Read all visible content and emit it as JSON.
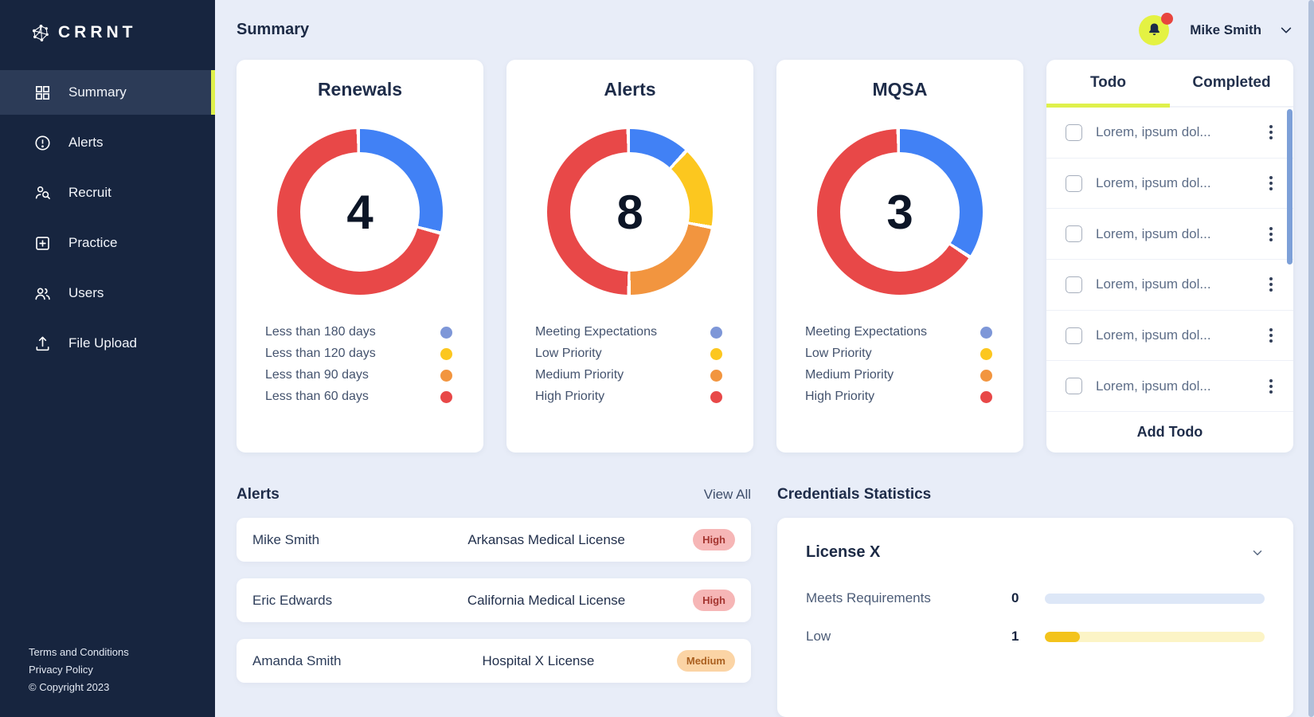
{
  "app": {
    "brand": "CRRNT"
  },
  "header": {
    "title": "Summary"
  },
  "user": {
    "name": "Mike Smith"
  },
  "sidebar": {
    "items": [
      {
        "label": "Summary",
        "icon": "grid-icon",
        "active": true
      },
      {
        "label": "Alerts",
        "icon": "alert-circle-icon",
        "active": false
      },
      {
        "label": "Recruit",
        "icon": "person-search-icon",
        "active": false
      },
      {
        "label": "Practice",
        "icon": "square-plus-icon",
        "active": false
      },
      {
        "label": "Users",
        "icon": "users-icon",
        "active": false
      },
      {
        "label": "File Upload",
        "icon": "upload-icon",
        "active": false
      }
    ],
    "footer": {
      "terms": "Terms and Conditions",
      "privacy": "Privacy Policy",
      "copyright": "© Copyright 2023"
    }
  },
  "chart_data": [
    {
      "type": "pie",
      "title": "Renewals",
      "center_value": "4",
      "segments": [
        {
          "label": "Less than 180 days",
          "color": "#4181f5",
          "deg": 106
        },
        {
          "label": "Less than 60 days",
          "color": "#e84848",
          "deg": 254
        }
      ],
      "legend": [
        {
          "label": "Less than 180 days",
          "color": "#7e97d8"
        },
        {
          "label": "Less than 120 days",
          "color": "#fcc71f"
        },
        {
          "label": "Less than 90 days",
          "color": "#f2953f"
        },
        {
          "label": "Less than 60 days",
          "color": "#e84848"
        }
      ]
    },
    {
      "type": "pie",
      "title": "Alerts",
      "center_value": "8",
      "segments": [
        {
          "label": "Meeting Expectations",
          "color": "#4181f5",
          "deg": 44
        },
        {
          "label": "Low Priority",
          "color": "#fcc71f",
          "deg": 58
        },
        {
          "label": "Medium Priority",
          "color": "#f2953f",
          "deg": 80
        },
        {
          "label": "High Priority",
          "color": "#e84848",
          "deg": 178
        }
      ],
      "legend": [
        {
          "label": "Meeting Expectations",
          "color": "#7e97d8"
        },
        {
          "label": "Low Priority",
          "color": "#fcc71f"
        },
        {
          "label": "Medium Priority",
          "color": "#f2953f"
        },
        {
          "label": "High Priority",
          "color": "#e84848"
        }
      ]
    },
    {
      "type": "pie",
      "title": "MQSA",
      "center_value": "3",
      "segments": [
        {
          "label": "Meeting Expectations",
          "color": "#4181f5",
          "deg": 124
        },
        {
          "label": "High Priority",
          "color": "#e84848",
          "deg": 236
        }
      ],
      "legend": [
        {
          "label": "Meeting Expectations",
          "color": "#7e97d8"
        },
        {
          "label": "Low Priority",
          "color": "#fcc71f"
        },
        {
          "label": "Medium Priority",
          "color": "#f2953f"
        },
        {
          "label": "High Priority",
          "color": "#e84848"
        }
      ]
    }
  ],
  "todo": {
    "tabs": [
      {
        "label": "Todo",
        "active": true
      },
      {
        "label": "Completed",
        "active": false
      }
    ],
    "items": [
      {
        "text": "Lorem, ipsum dol..."
      },
      {
        "text": "Lorem, ipsum dol..."
      },
      {
        "text": "Lorem, ipsum dol..."
      },
      {
        "text": "Lorem, ipsum dol..."
      },
      {
        "text": "Lorem, ipsum dol..."
      },
      {
        "text": "Lorem, ipsum dol..."
      }
    ],
    "add_button": "Add Todo"
  },
  "alerts_section": {
    "heading": "Alerts",
    "view_all": "View All",
    "rows": [
      {
        "name": "Mike Smith",
        "license": "Arkansas Medical License",
        "priority": "High"
      },
      {
        "name": "Eric Edwards",
        "license": "California Medical License",
        "priority": "High"
      },
      {
        "name": "Amanda Smith",
        "license": "Hospital X License",
        "priority": "Medium"
      }
    ]
  },
  "credentials": {
    "heading": "Credentials Statistics",
    "group_label": "License X",
    "rows": [
      {
        "label": "Meets Requirements",
        "value": "0",
        "fill_percent": 0,
        "fill_color": "#4181f5",
        "track_color": "#dde7f7"
      },
      {
        "label": "Low",
        "value": "1",
        "fill_percent": 16,
        "fill_color": "#f3c31c",
        "track_color": "#fcf4c6"
      }
    ]
  },
  "colors": {
    "accent_green": "#dff04b",
    "sidebar_bg": "#17253f",
    "sidebar_active_bg": "#2c3b57",
    "page_bg": "#e8edf8",
    "chart_blue": "#4181f5",
    "chart_yellow": "#fcc71f",
    "chart_orange": "#f2953f",
    "chart_red": "#e84848",
    "badge_high_bg": "#f6b6b6",
    "badge_high_text": "#a4342f",
    "badge_medium_bg": "#fbd4a5",
    "badge_medium_text": "#aa5f1f",
    "todo_scrollbar": "#7da0d8",
    "notification_dot": "#e8453e",
    "bell_bg": "#e4f243"
  }
}
